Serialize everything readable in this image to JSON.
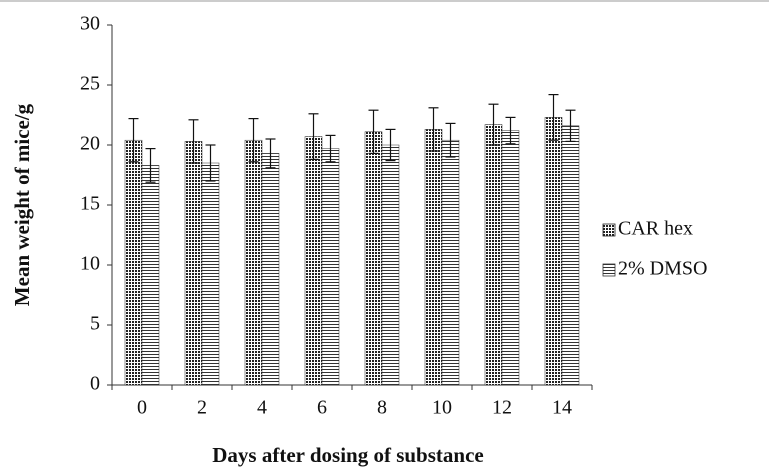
{
  "chart_data": {
    "type": "bar",
    "x_label": "Days after dosing of substance",
    "y_label": "Mean weight of mice/g",
    "categories": [
      "0",
      "2",
      "4",
      "6",
      "8",
      "10",
      "12",
      "14"
    ],
    "series": [
      {
        "name": "CAR hex",
        "color": "#222222",
        "values": [
          20.4,
          20.3,
          20.4,
          20.7,
          21.1,
          21.3,
          21.7,
          22.3
        ],
        "errors": [
          1.8,
          1.8,
          1.8,
          1.9,
          1.8,
          1.8,
          1.7,
          1.9
        ]
      },
      {
        "name": "2% DMSO",
        "color": "#333333",
        "values": [
          18.3,
          18.5,
          19.3,
          19.7,
          20.0,
          20.4,
          21.2,
          21.6
        ],
        "errors": [
          1.4,
          1.5,
          1.2,
          1.1,
          1.3,
          1.4,
          1.1,
          1.3
        ]
      }
    ],
    "ylim": [
      0,
      30
    ],
    "yticks": [
      0,
      5,
      10,
      15,
      20,
      25,
      30
    ]
  }
}
